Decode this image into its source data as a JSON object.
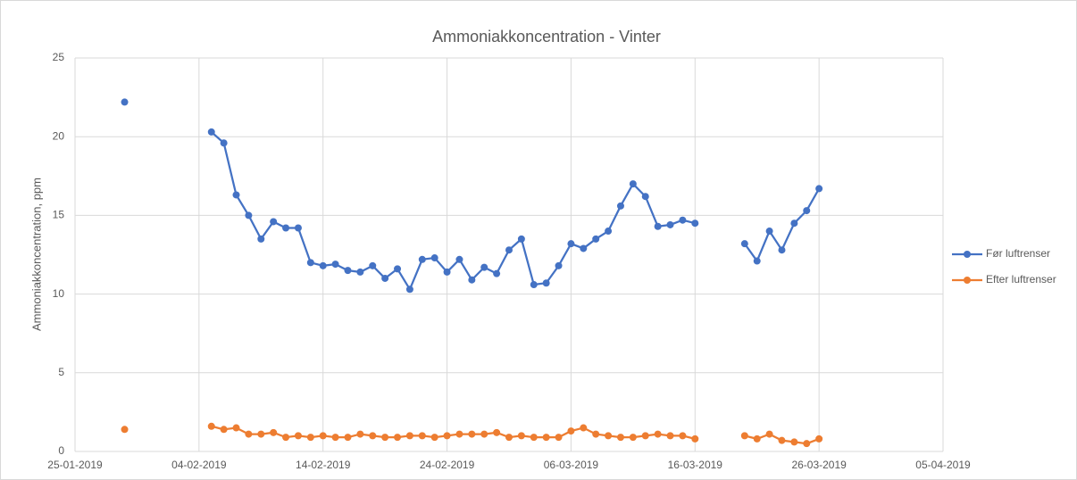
{
  "chart_data": {
    "type": "line",
    "title": "Ammoniakkoncentration - Vinter",
    "y_label": "Ammoniakkoncentration, ppm",
    "x": [
      "29-01-2019",
      "30-01-2019",
      "05-02-2019",
      "06-02-2019",
      "07-02-2019",
      "08-02-2019",
      "09-02-2019",
      "10-02-2019",
      "11-02-2019",
      "12-02-2019",
      "13-02-2019",
      "14-02-2019",
      "15-02-2019",
      "16-02-2019",
      "17-02-2019",
      "18-02-2019",
      "19-02-2019",
      "20-02-2019",
      "21-02-2019",
      "22-02-2019",
      "23-02-2019",
      "24-02-2019",
      "25-02-2019",
      "26-02-2019",
      "27-02-2019",
      "28-02-2019",
      "01-03-2019",
      "02-03-2019",
      "03-03-2019",
      "04-03-2019",
      "05-03-2019",
      "06-03-2019",
      "07-03-2019",
      "08-03-2019",
      "09-03-2019",
      "10-03-2019",
      "11-03-2019",
      "12-03-2019",
      "13-03-2019",
      "14-03-2019",
      "15-03-2019",
      "16-03-2019",
      "17-03-2019",
      "20-03-2019",
      "21-03-2019",
      "22-03-2019",
      "23-03-2019",
      "24-03-2019",
      "25-03-2019",
      "26-03-2019"
    ],
    "series": [
      {
        "name": "Før luftrenser",
        "color": "#4472c4",
        "values": [
          22.2,
          null,
          20.3,
          19.6,
          16.3,
          15.0,
          13.5,
          14.6,
          14.2,
          14.2,
          12.0,
          11.8,
          11.9,
          11.5,
          11.4,
          11.8,
          11.0,
          11.6,
          10.3,
          12.2,
          12.3,
          11.4,
          12.2,
          10.9,
          11.7,
          11.3,
          12.8,
          13.5,
          10.6,
          10.7,
          11.8,
          13.2,
          12.9,
          13.5,
          14.0,
          15.6,
          17.0,
          16.2,
          14.3,
          14.4,
          14.7,
          14.5,
          null,
          13.2,
          12.1,
          14.0,
          12.8,
          14.5,
          15.3,
          16.7
        ]
      },
      {
        "name": "Efter luftrenser",
        "color": "#ed7d31",
        "values": [
          1.4,
          null,
          1.6,
          1.4,
          1.5,
          1.1,
          1.1,
          1.2,
          0.9,
          1.0,
          0.9,
          1.0,
          0.9,
          0.9,
          1.1,
          1.0,
          0.9,
          0.9,
          1.0,
          1.0,
          0.9,
          1.0,
          1.1,
          1.1,
          1.1,
          1.2,
          0.9,
          1.0,
          0.9,
          0.9,
          0.9,
          1.3,
          1.5,
          1.1,
          1.0,
          0.9,
          0.9,
          1.0,
          1.1,
          1.0,
          1.0,
          0.8,
          null,
          1.0,
          0.8,
          1.1,
          0.7,
          0.6,
          0.5,
          0.8
        ]
      }
    ],
    "xlim": [
      "25-01-2019",
      "05-04-2019"
    ],
    "xticks": [
      "25-01-2019",
      "04-02-2019",
      "14-02-2019",
      "24-02-2019",
      "06-03-2019",
      "16-03-2019",
      "26-03-2019",
      "05-04-2019"
    ],
    "ylim": [
      0,
      25
    ],
    "yticks": [
      0,
      5,
      10,
      15,
      20,
      25
    ],
    "grid": true,
    "legend": "right"
  }
}
